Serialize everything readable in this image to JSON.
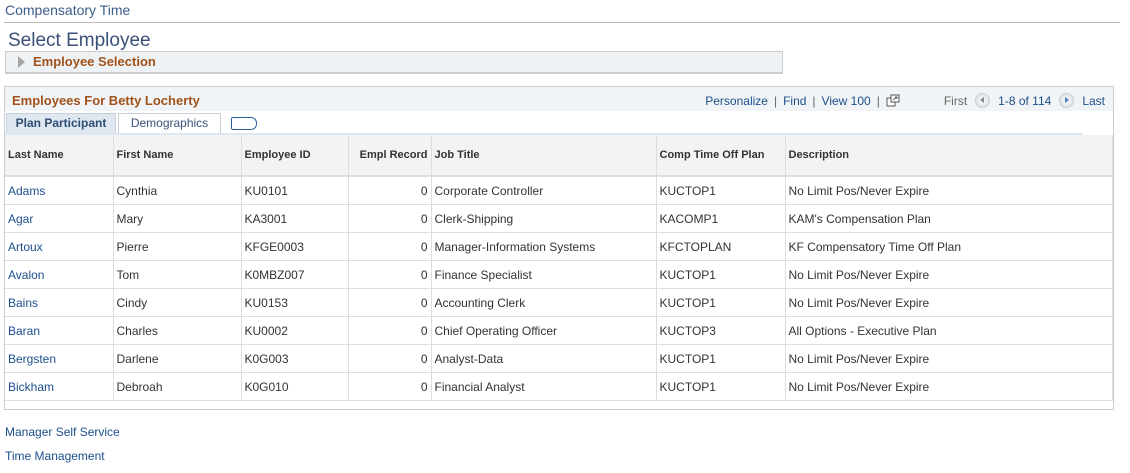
{
  "breadcrumb": "Compensatory Time",
  "page_title": "Select Employee",
  "collapsible_section": "Employee Selection",
  "grid": {
    "title": "Employees For Betty Locherty",
    "toolbar": {
      "personalize": "Personalize",
      "find": "Find",
      "view": "View 100",
      "first": "First",
      "range": "1-8 of 114",
      "last": "Last",
      "separator": "|"
    },
    "tabs": [
      {
        "label": "Plan Participant",
        "active": true
      },
      {
        "label": "Demographics",
        "active": false
      }
    ],
    "columns": [
      "Last Name",
      "First Name",
      "Employee ID",
      "Empl Record",
      "Job Title",
      "Comp Time Off Plan",
      "Description"
    ],
    "rows": [
      [
        "Adams",
        "Cynthia",
        "KU0101",
        "0",
        "Corporate Controller",
        "KUCTOP1",
        "No Limit Pos/Never Expire"
      ],
      [
        "Agar",
        "Mary",
        "KA3001",
        "0",
        "Clerk-Shipping",
        "KACOMP1",
        "KAM's Compensation Plan"
      ],
      [
        "Artoux",
        "Pierre",
        "KFGE0003",
        "0",
        "Manager-Information Systems",
        "KFCTOPLAN",
        "KF Compensatory Time Off Plan"
      ],
      [
        "Avalon",
        "Tom",
        "K0MBZ007",
        "0",
        "Finance Specialist",
        "KUCTOP1",
        "No Limit Pos/Never Expire"
      ],
      [
        "Bains",
        "Cindy",
        "KU0153",
        "0",
        "Accounting Clerk",
        "KUCTOP1",
        "No Limit Pos/Never Expire"
      ],
      [
        "Baran",
        "Charles",
        "KU0002",
        "0",
        "Chief Operating Officer",
        "KUCTOP3",
        "All Options - Executive Plan"
      ],
      [
        "Bergsten",
        "Darlene",
        "K0G003",
        "0",
        "Analyst-Data",
        "KUCTOP1",
        "No Limit Pos/Never Expire"
      ],
      [
        "Bickham",
        "Debroah",
        "K0G010",
        "0",
        "Financial Analyst",
        "KUCTOP1",
        "No Limit Pos/Never Expire"
      ]
    ]
  },
  "footer_links": [
    "Manager Self Service",
    "Time Management"
  ],
  "colors": {
    "link": "#1c4f8c",
    "section_title": "#a0521b",
    "header_bg": "#f1f4f6"
  }
}
